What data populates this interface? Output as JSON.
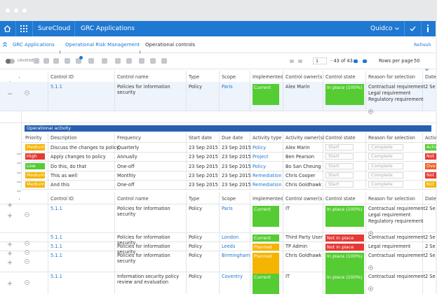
{
  "app_bar": {
    "brand": "SureCloud",
    "app": "GRC Applications",
    "user": "Quidco"
  },
  "breadcrumb": [
    "GRC Applications",
    "Operational Risk Management",
    "Operational controls"
  ],
  "refresh": "Refresh",
  "toolbar": {
    "toggle": "UNVIEWED",
    "page": "1",
    "page_info": "- 43 of 43",
    "rows_label": "Rows per page",
    "rows_value": "50"
  },
  "columns": [
    "Control ID",
    "Control name",
    "Type",
    "Scope",
    "Implemented",
    "Control owner(s)",
    "Control state",
    "Reason for selection",
    "Date"
  ],
  "rows": [
    {
      "id": "5.1.1",
      "name": "Policies for information security",
      "type": "Policy",
      "scope": "Paris",
      "implemented": {
        "label": "Current",
        "color": "#55cc33"
      },
      "owner": "Alex Marin",
      "state": {
        "label": "In place (100%)",
        "color": "#55cc33"
      },
      "reasons": [
        "Contractual requirement",
        "Legal requirement",
        "Regulatory requirement"
      ],
      "date": "2 Se"
    },
    {
      "id": "5.1.1",
      "name": "Policies for information security",
      "type": "Policy",
      "scope": "Paris",
      "implemented": {
        "label": "Current",
        "color": "#55cc33"
      },
      "owner": "IT",
      "state": {
        "label": "In place (100%)",
        "color": "#55cc33"
      },
      "reasons": [
        "Contractual requirement",
        "Legal requirement",
        "Regulatory requirement"
      ],
      "date": "2 Se"
    },
    {
      "id": "5.1.1",
      "name": "Policies for information security",
      "type": "Policy",
      "scope": "London",
      "implemented": {
        "label": "Current",
        "color": "#55cc33"
      },
      "owner": "Third Party User",
      "state": {
        "label": "Not in place (0%)",
        "color": "#e53935"
      },
      "reasons": [
        "Contractual requirement"
      ],
      "date": "2 Se"
    },
    {
      "id": "5.1.1",
      "name": "Policies for information security",
      "type": "Policy",
      "scope": "Leeds",
      "implemented": {
        "label": "Planned",
        "color": "#f5b400"
      },
      "owner": "TP Admin",
      "state": {
        "label": "Not in place (0%)",
        "color": "#e53935"
      },
      "reasons": [
        "Legal requirement"
      ],
      "date": "2 Se"
    },
    {
      "id": "5.1.1",
      "name": "Policies for information security",
      "type": "Policy",
      "scope": "Birmingham",
      "implemented": {
        "label": "Planned",
        "color": "#f5b400"
      },
      "owner": "Chris Goldhawk",
      "state": {
        "label": "In place (100%)",
        "color": "#55cc33"
      },
      "reasons": [
        "Contractual requirement"
      ],
      "date": "2 Se"
    },
    {
      "id": "5.1.1",
      "name": "Information security policy review and evaluation",
      "type": "Policy",
      "scope": "Coventry",
      "implemented": {
        "label": "Current",
        "color": "#55cc33"
      },
      "owner": "IT",
      "state": {
        "label": "In place (100%)",
        "color": "#55cc33"
      },
      "reasons": [
        "Contractual requirement"
      ],
      "date": "2 Se"
    }
  ],
  "activity": {
    "title": "Operational activity",
    "columns": [
      "Priority",
      "Description",
      "Frequency",
      "Start date",
      "Due date",
      "Activity type",
      "Activity owner(s)",
      "Control state",
      "Reason for selection",
      "Activ"
    ],
    "rows": [
      {
        "priority": {
          "label": "Medium",
          "color": "#f5b400"
        },
        "description": "Discuss the changes to policy",
        "frequency": "Quarterly",
        "start": "23 Sep 2015",
        "due": "23 Sep 2015",
        "type": "Policy",
        "owner": "Alex Marin",
        "state": "Start",
        "reason": "Complete",
        "active": {
          "label": "Active",
          "color": "#55cc33"
        }
      },
      {
        "priority": {
          "label": "High",
          "color": "#e53935"
        },
        "description": "Apply changes to policy",
        "frequency": "Annually",
        "start": "23 Sep 2015",
        "due": "23 Sep 2015",
        "type": "Project",
        "owner": "Ben Pearson",
        "state": "Start",
        "reason": "Complete",
        "active": {
          "label": "Not",
          "color": "#e53935"
        }
      },
      {
        "priority": {
          "label": "Low",
          "color": "#55cc33"
        },
        "description": "Do this, do that",
        "frequency": "One-off",
        "start": "23 Sep 2015",
        "due": "23 Sep 2015",
        "type": "Policy",
        "owner": "Bo San Cheung",
        "state": "Start",
        "reason": "Complete",
        "active": {
          "label": "Ove",
          "color": "#f0602a"
        }
      },
      {
        "priority": {
          "label": "Medium",
          "color": "#f5b400"
        },
        "description": "This as well",
        "frequency": "Monthly",
        "start": "23 Sep 2015",
        "due": "23 Sep 2015",
        "type": "Remediation",
        "owner": "Chris Cooper",
        "state": "Start",
        "reason": "Complete",
        "active": {
          "label": "Not",
          "color": "#e53935"
        }
      },
      {
        "priority": {
          "label": "Medium",
          "color": "#f5b400"
        },
        "description": "And this",
        "frequency": "One-off",
        "start": "23 Sep 2015",
        "due": "23 Sep 2015",
        "type": "Remediation",
        "owner": "Chris Goldhawk",
        "state": "Start",
        "reason": "Complete",
        "active": {
          "label": "Not",
          "color": "#f5b400"
        }
      }
    ]
  }
}
